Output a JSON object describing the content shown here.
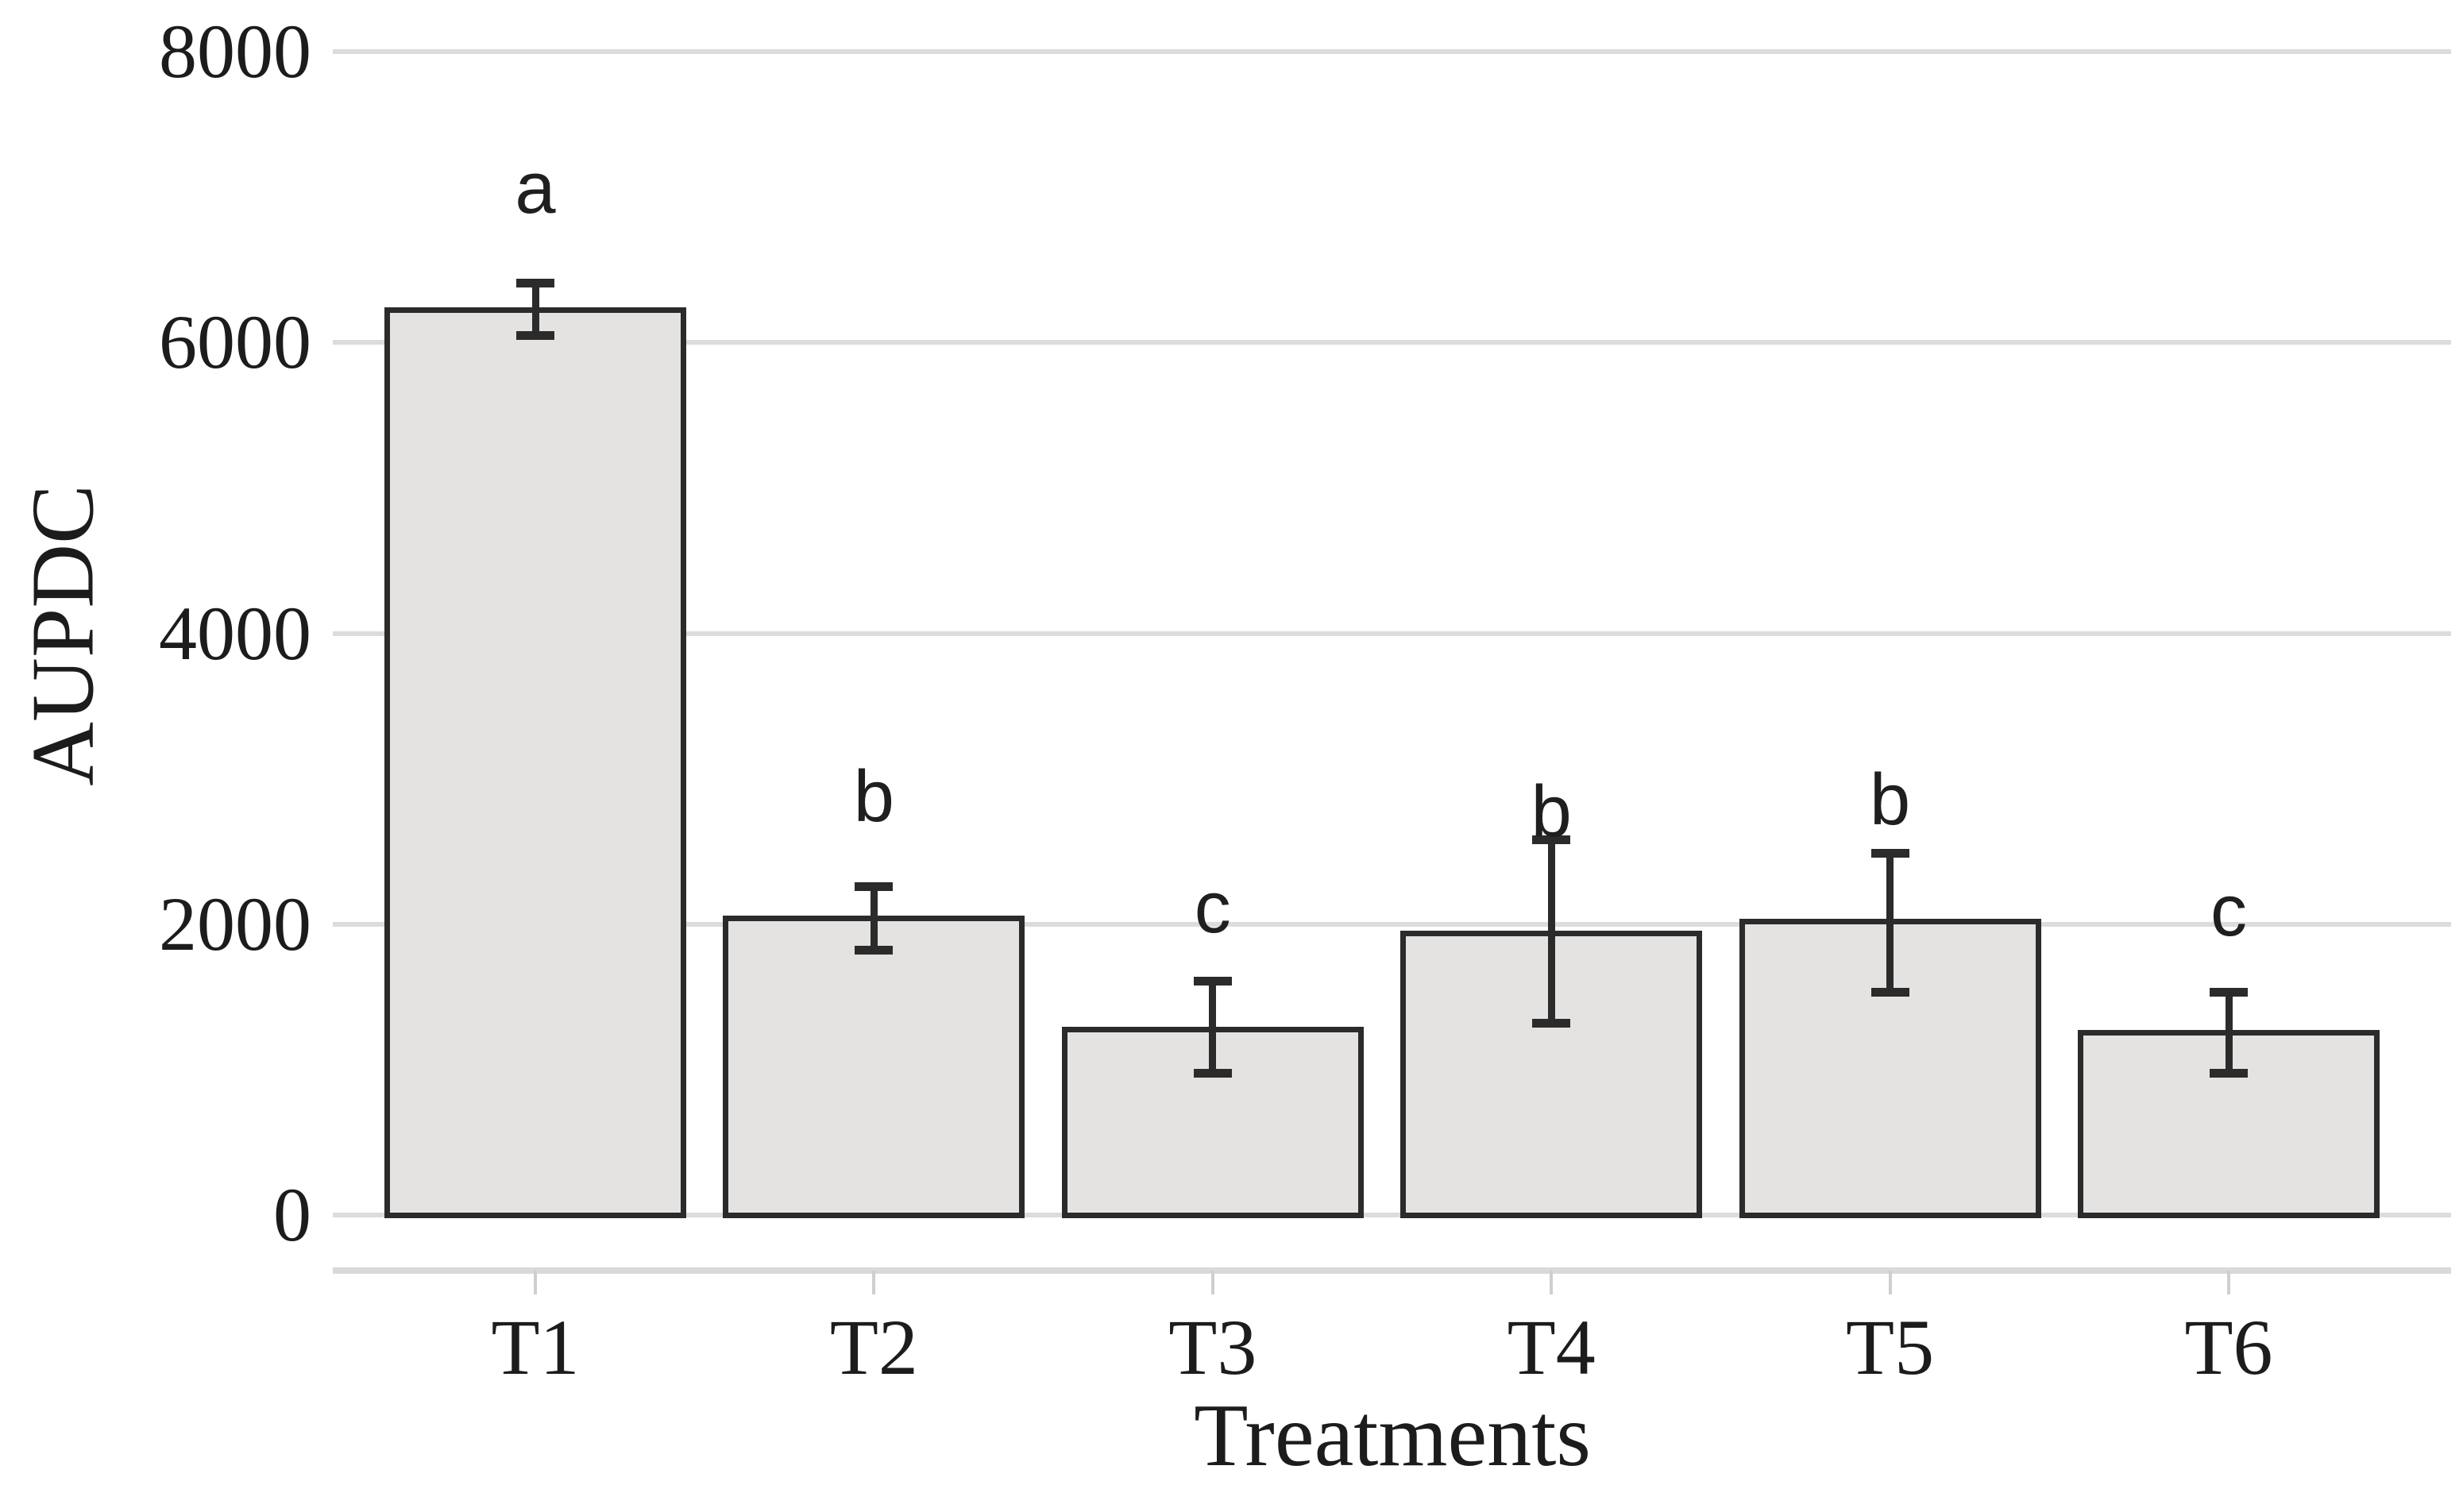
{
  "figure": {
    "background": "#ffffff"
  },
  "chart_data": {
    "type": "bar",
    "title": "",
    "xlabel": "Treatments",
    "ylabel": "AUPDC",
    "categories": [
      "T1",
      "T2",
      "T3",
      "T4",
      "T5",
      "T6"
    ],
    "values": [
      6240,
      2060,
      1295,
      1955,
      2035,
      1270
    ],
    "error_low": [
      6050,
      1820,
      975,
      1320,
      1530,
      975
    ],
    "error_high": [
      6410,
      2260,
      1610,
      2580,
      2490,
      1530
    ],
    "sig_letters": [
      "a",
      "b",
      "c",
      "b",
      "b",
      "c"
    ],
    "ylim": [
      0,
      8000
    ],
    "yticks": [
      0,
      2000,
      4000,
      6000,
      8000
    ],
    "grid": "horizontal-only",
    "legend": "none",
    "colors": {
      "bar_fill": "#e4e3e1",
      "bar_edge": "#2b2b2b",
      "error_bar": "#2b2b2b",
      "gridline": "#dcdcdc",
      "axis_line": "#d9d9d9",
      "tick_mark": "#cfcfcf",
      "text": "#1c1c1c"
    }
  }
}
